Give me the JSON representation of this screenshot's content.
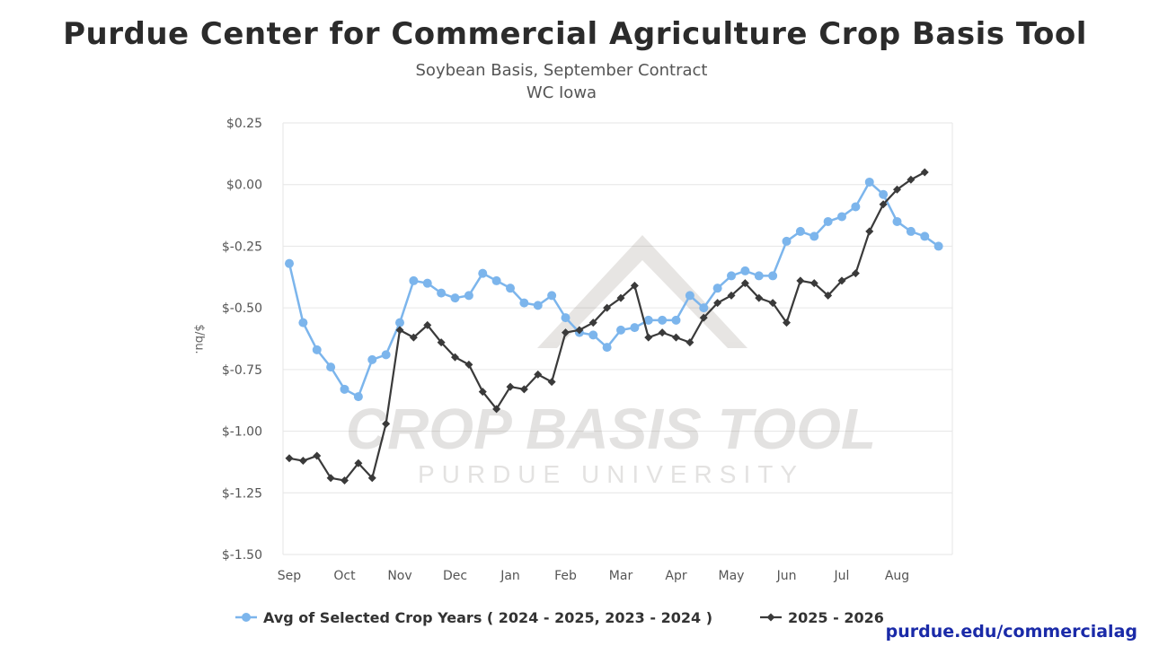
{
  "header": {
    "title": "Purdue Center for Commercial Agriculture Crop Basis Tool",
    "subtitle": "Soybean Basis, September Contract",
    "region": "WC Iowa"
  },
  "watermark": {
    "line1": "CROP BASIS TOOL",
    "line2": "PURDUE UNIVERSITY"
  },
  "footer": {
    "credit": "purdue.edu/commercialag"
  },
  "colors": {
    "series_avg": "#7cb5ec",
    "series_current": "#3a3a3a",
    "grid": "#e6e6e6",
    "credit": "#1a2aa8"
  },
  "chart_data": {
    "type": "line",
    "ylabel": "$/bu.",
    "ylim": [
      -1.5,
      0.25
    ],
    "y_ticks": [
      0.25,
      0.0,
      -0.25,
      -0.5,
      -0.75,
      -1.0,
      -1.25,
      -1.5
    ],
    "y_tick_labels": [
      "$0.25",
      "$0.00",
      "$-0.25",
      "$-0.50",
      "$-0.75",
      "$-1.00",
      "$-1.25",
      "$-1.50"
    ],
    "x_ticks": [
      "Sep",
      "Oct",
      "Nov",
      "Dec",
      "Jan",
      "Feb",
      "Mar",
      "Apr",
      "May",
      "Jun",
      "Jul",
      "Aug"
    ],
    "grid": true,
    "legend_position": "bottom",
    "series": [
      {
        "name": "Avg of Selected Crop Years ( 2024 - 2025, 2023 - 2024 )",
        "marker": "circle",
        "x": [
          0.0,
          0.25,
          0.5,
          0.75,
          1.0,
          1.25,
          1.5,
          1.75,
          2.0,
          2.25,
          2.5,
          2.75,
          3.0,
          3.25,
          3.5,
          3.75,
          4.0,
          4.25,
          4.5,
          4.75,
          5.0,
          5.25,
          5.5,
          5.75,
          6.0,
          6.25,
          6.5,
          6.75,
          7.0,
          7.25,
          7.5,
          7.75,
          8.0,
          8.25,
          8.5,
          8.75,
          9.0,
          9.25,
          9.5,
          9.75,
          10.0,
          10.25,
          10.5,
          10.75,
          11.0,
          11.25,
          11.5
        ],
        "values": [
          -0.32,
          -0.56,
          -0.67,
          -0.74,
          -0.83,
          -0.86,
          -0.71,
          -0.69,
          -0.56,
          -0.39,
          -0.4,
          -0.44,
          -0.46,
          -0.45,
          -0.36,
          -0.39,
          -0.42,
          -0.48,
          -0.49,
          -0.45,
          -0.54,
          -0.6,
          -0.61,
          -0.66,
          -0.59,
          -0.58,
          -0.55,
          -0.55,
          -0.55,
          -0.45,
          -0.5,
          -0.42,
          -0.37,
          -0.35,
          -0.37,
          -0.37,
          -0.23,
          -0.19,
          -0.21,
          -0.15,
          -0.13,
          -0.09,
          0.01,
          -0.04,
          -0.15,
          -0.19,
          -0.21
        ]
      },
      {
        "name": "2025 - 2026",
        "marker": "diamond",
        "x": [
          0.0,
          0.25,
          0.5,
          0.75,
          1.0,
          1.25,
          1.5,
          1.75,
          2.0,
          2.25,
          2.5,
          2.75,
          3.0,
          3.25,
          3.5,
          3.75,
          4.0,
          4.25,
          4.5,
          4.75,
          5.0,
          5.25,
          5.5,
          5.75,
          6.0,
          6.25,
          6.5,
          6.75,
          7.0,
          7.25,
          7.5,
          7.75,
          8.0,
          8.25,
          8.5,
          8.75,
          9.0,
          9.25,
          9.5,
          9.75,
          10.0,
          10.25,
          10.5,
          10.75,
          11.0,
          11.25,
          11.5
        ],
        "values": [
          -1.11,
          -1.12,
          -1.1,
          -1.19,
          -1.2,
          -1.13,
          -1.19,
          -0.97,
          -0.59,
          -0.62,
          -0.57,
          -0.64,
          -0.7,
          -0.73,
          -0.84,
          -0.91,
          -0.82,
          -0.83,
          -0.77,
          -0.8,
          -0.6,
          -0.59,
          -0.56,
          -0.5,
          -0.46,
          -0.41,
          -0.62,
          -0.6,
          -0.62,
          -0.64,
          -0.54,
          -0.48,
          -0.45,
          -0.4,
          -0.46,
          -0.48,
          -0.56,
          -0.39,
          -0.4,
          -0.45,
          -0.39,
          -0.36,
          -0.19,
          -0.08,
          -0.02,
          0.02,
          0.05
        ]
      }
    ],
    "extra_point": {
      "series": 0,
      "x": 11.75,
      "value": -0.25
    }
  }
}
